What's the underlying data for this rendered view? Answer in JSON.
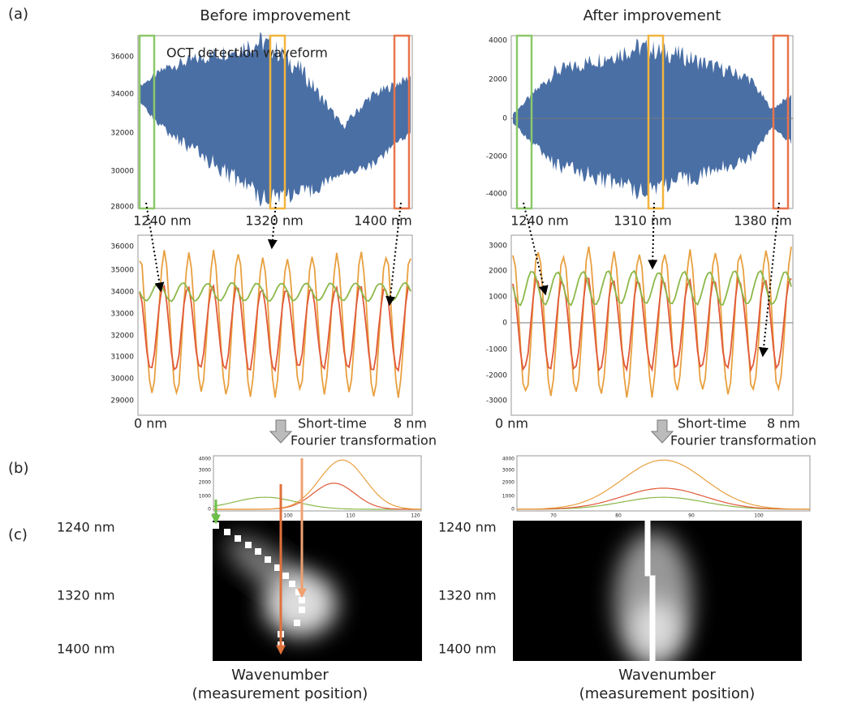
{
  "panel_labels": [
    "(a)",
    "(b)",
    "(c)"
  ],
  "columns": [
    {
      "title": "Before improvement",
      "waveform_label": "OCT detection waveform",
      "top_yticks": [
        "36000",
        "34000",
        "32000",
        "30000",
        "28000"
      ],
      "wavelengths": [
        "1240 nm",
        "1320 nm",
        "1400 nm"
      ],
      "zoom_yticks": [
        "36000",
        "35000",
        "34000",
        "33000",
        "32000",
        "31000",
        "30000",
        "29000"
      ],
      "zoom_x": [
        "0 nm",
        "8 nm"
      ],
      "transform": [
        "Short-time",
        "Fourier transformation"
      ],
      "spectrum_yticks": [
        "4000",
        "3000",
        "2000",
        "1000",
        "0"
      ],
      "spectrum_xticks": [
        "90",
        "100",
        "110",
        "120"
      ],
      "map_yticks": [
        "1240 nm",
        "1320 nm",
        "1400 nm"
      ],
      "xlabel": [
        "Wavenumber",
        "(measurement position)"
      ]
    },
    {
      "title": "After improvement",
      "top_yticks": [
        "4000",
        "2000",
        "0",
        "-2000",
        "-4000"
      ],
      "wavelengths": [
        "1240 nm",
        "1310 nm",
        "1380 nm"
      ],
      "zoom_yticks": [
        "3000",
        "2000",
        "1000",
        "0",
        "-1000",
        "-2000",
        "-3000"
      ],
      "zoom_x": [
        "0 nm",
        "8 nm"
      ],
      "transform": [
        "Short-time",
        "Fourier transformation"
      ],
      "spectrum_yticks": [
        "4000",
        "3000",
        "2000",
        "1000",
        "0"
      ],
      "spectrum_xticks": [
        "70",
        "80",
        "90",
        "100"
      ],
      "map_yticks": [
        "1240 nm",
        "1320 nm",
        "1400 nm"
      ],
      "xlabel": [
        "Wavenumber",
        "(measurement position)"
      ]
    }
  ]
}
